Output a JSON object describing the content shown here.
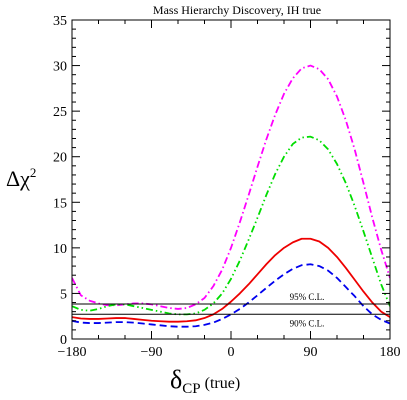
{
  "chart_data": {
    "type": "line",
    "title": "Mass Hierarchy Discovery, IH true",
    "xlabel": {
      "main": "δ",
      "sub": "CP",
      "suffix": " (true)"
    },
    "ylabel": {
      "main": "Δχ",
      "sup": "2"
    },
    "xlim": [
      -180,
      180
    ],
    "ylim": [
      0,
      35
    ],
    "xticks": [
      -180,
      -90,
      0,
      90,
      180
    ],
    "yticks": [
      0,
      5,
      10,
      15,
      20,
      25,
      30,
      35
    ],
    "grid": false,
    "reference_lines": [
      {
        "label": "95% C.L.",
        "y": 3.84,
        "color": "#000000"
      },
      {
        "label": "90% C.L.",
        "y": 2.71,
        "color": "#000000"
      }
    ],
    "series": [
      {
        "color": "#ff00ff",
        "dash": "dashdot",
        "points": [
          [
            -180,
            6.7
          ],
          [
            -170,
            4.8
          ],
          [
            -160,
            4.2
          ],
          [
            -150,
            3.9
          ],
          [
            -140,
            3.7
          ],
          [
            -130,
            3.7
          ],
          [
            -120,
            3.8
          ],
          [
            -110,
            3.9
          ],
          [
            -100,
            3.9
          ],
          [
            -90,
            3.8
          ],
          [
            -80,
            3.6
          ],
          [
            -70,
            3.4
          ],
          [
            -60,
            3.3
          ],
          [
            -50,
            3.4
          ],
          [
            -40,
            3.8
          ],
          [
            -30,
            4.5
          ],
          [
            -20,
            5.8
          ],
          [
            -10,
            7.6
          ],
          [
            0,
            10.0
          ],
          [
            10,
            12.8
          ],
          [
            20,
            15.8
          ],
          [
            30,
            18.9
          ],
          [
            40,
            21.9
          ],
          [
            50,
            24.6
          ],
          [
            60,
            26.9
          ],
          [
            70,
            28.6
          ],
          [
            80,
            29.7
          ],
          [
            90,
            30.0
          ],
          [
            100,
            29.6
          ],
          [
            110,
            28.5
          ],
          [
            120,
            26.6
          ],
          [
            130,
            24.0
          ],
          [
            140,
            20.8
          ],
          [
            150,
            17.1
          ],
          [
            160,
            13.3
          ],
          [
            170,
            9.8
          ],
          [
            180,
            6.7
          ]
        ]
      },
      {
        "color": "#00dd00",
        "dash": "dashdotdot",
        "points": [
          [
            -180,
            3.6
          ],
          [
            -170,
            3.2
          ],
          [
            -160,
            3.1
          ],
          [
            -150,
            3.3
          ],
          [
            -140,
            3.6
          ],
          [
            -130,
            3.8
          ],
          [
            -120,
            3.8
          ],
          [
            -110,
            3.6
          ],
          [
            -100,
            3.4
          ],
          [
            -90,
            3.2
          ],
          [
            -80,
            3.0
          ],
          [
            -70,
            2.8
          ],
          [
            -60,
            2.7
          ],
          [
            -50,
            2.7
          ],
          [
            -40,
            2.8
          ],
          [
            -30,
            3.2
          ],
          [
            -20,
            3.9
          ],
          [
            -10,
            5.0
          ],
          [
            0,
            6.6
          ],
          [
            10,
            8.6
          ],
          [
            20,
            10.9
          ],
          [
            30,
            13.3
          ],
          [
            40,
            15.8
          ],
          [
            50,
            18.1
          ],
          [
            60,
            20.0
          ],
          [
            70,
            21.4
          ],
          [
            80,
            22.1
          ],
          [
            90,
            22.2
          ],
          [
            100,
            21.8
          ],
          [
            110,
            20.8
          ],
          [
            120,
            19.2
          ],
          [
            130,
            17.1
          ],
          [
            140,
            14.6
          ],
          [
            150,
            11.8
          ],
          [
            160,
            8.9
          ],
          [
            170,
            6.0
          ],
          [
            180,
            3.6
          ]
        ]
      },
      {
        "color": "#ee0000",
        "dash": "solid",
        "points": [
          [
            -180,
            2.4
          ],
          [
            -170,
            2.25
          ],
          [
            -160,
            2.2
          ],
          [
            -150,
            2.2
          ],
          [
            -140,
            2.25
          ],
          [
            -130,
            2.3
          ],
          [
            -120,
            2.3
          ],
          [
            -110,
            2.2
          ],
          [
            -100,
            2.1
          ],
          [
            -90,
            2.0
          ],
          [
            -80,
            1.95
          ],
          [
            -70,
            1.9
          ],
          [
            -60,
            1.9
          ],
          [
            -50,
            1.95
          ],
          [
            -40,
            2.05
          ],
          [
            -30,
            2.3
          ],
          [
            -20,
            2.7
          ],
          [
            -10,
            3.3
          ],
          [
            0,
            4.1
          ],
          [
            10,
            5.0
          ],
          [
            20,
            6.0
          ],
          [
            30,
            7.1
          ],
          [
            40,
            8.2
          ],
          [
            50,
            9.2
          ],
          [
            60,
            10.0
          ],
          [
            70,
            10.6
          ],
          [
            80,
            11.0
          ],
          [
            90,
            11.0
          ],
          [
            100,
            10.7
          ],
          [
            110,
            10.0
          ],
          [
            120,
            9.0
          ],
          [
            130,
            7.8
          ],
          [
            140,
            6.5
          ],
          [
            150,
            5.2
          ],
          [
            160,
            4.0
          ],
          [
            170,
            3.0
          ],
          [
            180,
            2.4
          ]
        ]
      },
      {
        "color": "#0000ee",
        "dash": "dashed",
        "points": [
          [
            -180,
            2.0
          ],
          [
            -170,
            1.8
          ],
          [
            -160,
            1.75
          ],
          [
            -150,
            1.75
          ],
          [
            -140,
            1.8
          ],
          [
            -130,
            1.85
          ],
          [
            -120,
            1.85
          ],
          [
            -110,
            1.8
          ],
          [
            -100,
            1.7
          ],
          [
            -90,
            1.6
          ],
          [
            -80,
            1.5
          ],
          [
            -70,
            1.4
          ],
          [
            -60,
            1.35
          ],
          [
            -50,
            1.35
          ],
          [
            -40,
            1.4
          ],
          [
            -30,
            1.55
          ],
          [
            -20,
            1.8
          ],
          [
            -10,
            2.2
          ],
          [
            0,
            2.7
          ],
          [
            10,
            3.3
          ],
          [
            20,
            4.0
          ],
          [
            30,
            4.8
          ],
          [
            40,
            5.6
          ],
          [
            50,
            6.4
          ],
          [
            60,
            7.1
          ],
          [
            70,
            7.7
          ],
          [
            80,
            8.1
          ],
          [
            90,
            8.2
          ],
          [
            100,
            8.0
          ],
          [
            110,
            7.5
          ],
          [
            120,
            6.7
          ],
          [
            130,
            5.7
          ],
          [
            140,
            4.7
          ],
          [
            150,
            3.6
          ],
          [
            160,
            2.7
          ],
          [
            170,
            2.1
          ],
          [
            180,
            1.7
          ]
        ]
      }
    ]
  }
}
